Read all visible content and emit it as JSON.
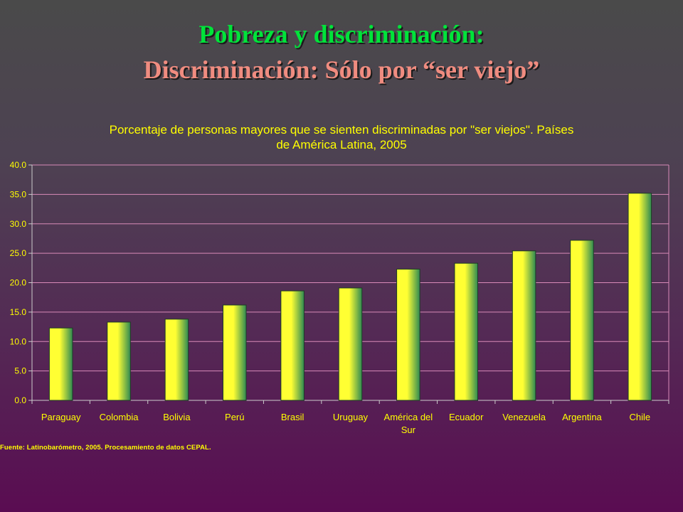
{
  "slide": {
    "title": "Pobreza y discriminación:",
    "subtitle": "Discriminación: Sólo por “ser viejo”"
  },
  "chart_data": {
    "type": "bar",
    "title_lines": [
      "Porcentaje de personas mayores que se sienten discriminadas por \"ser viejos\".  Países",
      "de América Latina, 2005"
    ],
    "categories": [
      "Paraguay",
      "Colombia",
      "Bolivia",
      "Perú",
      "Brasil",
      "Uruguay",
      "América del Sur",
      "Ecuador",
      "Venezuela",
      "Argentina",
      "Chile"
    ],
    "category_label_lines": [
      [
        "Paraguay"
      ],
      [
        "Colombia"
      ],
      [
        "Bolivia"
      ],
      [
        "Perú"
      ],
      [
        "Brasil"
      ],
      [
        "Uruguay"
      ],
      [
        "América del",
        "Sur"
      ],
      [
        "Ecuador"
      ],
      [
        "Venezuela"
      ],
      [
        "Argentina"
      ],
      [
        "Chile"
      ]
    ],
    "values": [
      12.3,
      13.3,
      13.8,
      16.2,
      18.6,
      19.1,
      22.3,
      23.3,
      25.4,
      27.2,
      35.2
    ],
    "ylim": [
      0,
      40
    ],
    "yticks": [
      "0.0",
      "5.0",
      "10.0",
      "15.0",
      "20.0",
      "25.0",
      "30.0",
      "35.0",
      "40.0"
    ],
    "xlabel": "",
    "ylabel": "",
    "grid": true,
    "legend": "none",
    "colors": {
      "bar_left": "#ffff33",
      "bar_right": "#2f8a52",
      "gridline": "#d98ab8",
      "axis": "#cccccc",
      "text": "#ffff00"
    }
  },
  "footer": {
    "source": "Fuente: Latinobarómetro, 2005. Procesamiento de datos CEPAL."
  }
}
